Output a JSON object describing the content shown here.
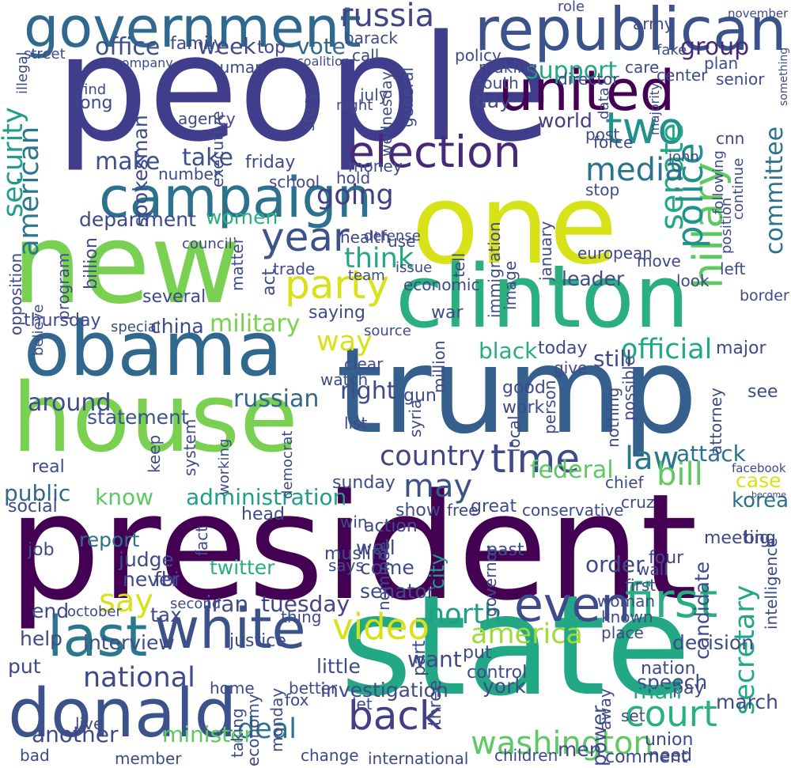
{
  "words": [
    {
      "text": "people",
      "color": "#3f3d8c"
    },
    {
      "text": "trump",
      "color": "#355f8d"
    },
    {
      "text": "president",
      "color": "#440154"
    },
    {
      "text": "state",
      "color": "#22a884"
    },
    {
      "text": "new",
      "color": "#7ad151"
    },
    {
      "text": "house",
      "color": "#7ad151"
    },
    {
      "text": "one",
      "color": "#d8e219"
    },
    {
      "text": "clinton",
      "color": "#2ab07f"
    },
    {
      "text": "obama",
      "color": "#31688e"
    },
    {
      "text": "republican",
      "color": "#3b528b"
    },
    {
      "text": "government",
      "color": "#31688e"
    },
    {
      "text": "campaign",
      "color": "#2c728e"
    },
    {
      "text": "donald",
      "color": "#3b528b"
    },
    {
      "text": "white",
      "color": "#3b528b"
    },
    {
      "text": "united",
      "color": "#440154"
    },
    {
      "text": "election",
      "color": "#482878"
    },
    {
      "text": "last",
      "color": "#2a788e"
    },
    {
      "text": "party",
      "color": "#d8e219"
    },
    {
      "text": "two",
      "color": "#21918c"
    },
    {
      "text": "hillary",
      "color": "#5ec962"
    },
    {
      "text": "even",
      "color": "#3e4a89"
    },
    {
      "text": "first",
      "color": "#27ad81"
    },
    {
      "text": "year",
      "color": "#3b528b"
    },
    {
      "text": "senate",
      "color": "#22a884"
    },
    {
      "text": "police",
      "color": "#21918c"
    },
    {
      "text": "media",
      "color": "#2c728e"
    },
    {
      "text": "back",
      "color": "#433e85"
    },
    {
      "text": "time",
      "color": "#3e4a89"
    },
    {
      "text": "court",
      "color": "#2ab07f"
    },
    {
      "text": "video",
      "color": "#d8e219"
    },
    {
      "text": "washington",
      "color": "#5ec962"
    },
    {
      "text": "national",
      "color": "#3e4a89"
    },
    {
      "text": "american",
      "color": "#2a788e"
    },
    {
      "text": "security",
      "color": "#1f9e89"
    },
    {
      "text": "russia",
      "color": "#414487"
    },
    {
      "text": "office",
      "color": "#3b528b"
    },
    {
      "text": "going",
      "color": "#433e85"
    },
    {
      "text": "make",
      "color": "#3b528b"
    },
    {
      "text": "take",
      "color": "#3b528b"
    },
    {
      "text": "think",
      "color": "#22a884"
    },
    {
      "text": "support",
      "color": "#22a884"
    },
    {
      "text": "group",
      "color": "#482878"
    },
    {
      "text": "week",
      "color": "#3e4a89"
    },
    {
      "text": "vote",
      "color": "#31688e"
    },
    {
      "text": "top",
      "color": "#3e4a89"
    },
    {
      "text": "country",
      "color": "#414487"
    },
    {
      "text": "law",
      "color": "#2a788e"
    },
    {
      "text": "bill",
      "color": "#5ec962"
    },
    {
      "text": "may",
      "color": "#3b528b"
    },
    {
      "text": "america",
      "color": "#a0da39"
    },
    {
      "text": "north",
      "color": "#1f9e89"
    },
    {
      "text": "administration",
      "color": "#1f9e89"
    },
    {
      "text": "department",
      "color": "#3e4a89"
    },
    {
      "text": "say",
      "color": "#d8e219"
    },
    {
      "text": "way",
      "color": "#d8e219"
    },
    {
      "text": "military",
      "color": "#7ad151"
    },
    {
      "text": "federal",
      "color": "#5ec962"
    },
    {
      "text": "committee",
      "color": "#2c728e"
    },
    {
      "text": "official",
      "color": "#22a884"
    },
    {
      "text": "world",
      "color": "#433e85"
    },
    {
      "text": "know",
      "color": "#5ec962"
    },
    {
      "text": "right",
      "color": "#3e4a89"
    },
    {
      "text": "deal",
      "color": "#2c728e"
    },
    {
      "text": "secretary",
      "color": "#22a884"
    },
    {
      "text": "tuesday",
      "color": "#414487"
    },
    {
      "text": "russian",
      "color": "#31688e"
    },
    {
      "text": "interview",
      "color": "#3e4a89"
    },
    {
      "text": "statement",
      "color": "#3b528b"
    },
    {
      "text": "around",
      "color": "#3e4a89"
    },
    {
      "text": "women",
      "color": "#2ab07f"
    },
    {
      "text": "public",
      "color": "#31688e"
    },
    {
      "text": "minister",
      "color": "#5ec962"
    },
    {
      "text": "another",
      "color": "#3e4a89"
    },
    {
      "text": "want",
      "color": "#3e4a89"
    },
    {
      "text": "investigation",
      "color": "#3e4a89"
    },
    {
      "text": "senator",
      "color": "#3e4a89"
    },
    {
      "text": "iran",
      "color": "#3e4a89"
    },
    {
      "text": "tax",
      "color": "#3e4a89"
    },
    {
      "text": "fbi",
      "color": "#414487"
    },
    {
      "text": "judge",
      "color": "#3e4a89"
    },
    {
      "text": "never",
      "color": "#3e4a89"
    },
    {
      "text": "report",
      "color": "#2c728e"
    },
    {
      "text": "twitter",
      "color": "#27ad81"
    },
    {
      "text": "china",
      "color": "#3e4a89"
    },
    {
      "text": "leader",
      "color": "#3e4a89"
    },
    {
      "text": "black",
      "color": "#27ad81"
    },
    {
      "text": "still",
      "color": "#3e4a89"
    },
    {
      "text": "case",
      "color": "#d8e219"
    },
    {
      "text": "attack",
      "color": "#2c728e"
    },
    {
      "text": "korea",
      "color": "#2c728e"
    },
    {
      "text": "order",
      "color": "#3e4a89"
    },
    {
      "text": "candidate",
      "color": "#3e4a89"
    },
    {
      "text": "city",
      "color": "#1f9e89"
    },
    {
      "text": "well",
      "color": "#3e4a89"
    },
    {
      "text": "come",
      "color": "#3e4a89"
    },
    {
      "text": "speech",
      "color": "#3e4a89"
    },
    {
      "text": "march",
      "color": "#3e4a89"
    },
    {
      "text": "pay",
      "color": "#3e4a89"
    },
    {
      "text": "nation",
      "color": "#3e4a89"
    },
    {
      "text": "man",
      "color": "#22a884"
    },
    {
      "text": "decision",
      "color": "#3e4a89"
    },
    {
      "text": "men",
      "color": "#3e4a89"
    },
    {
      "text": "york",
      "color": "#3e4a89"
    },
    {
      "text": "control",
      "color": "#3e4a89"
    },
    {
      "text": "need",
      "color": "#3e4a89"
    },
    {
      "text": "union",
      "color": "#3e4a89"
    },
    {
      "text": "comment",
      "color": "#3e4a89"
    },
    {
      "text": "power",
      "color": "#3e4a89"
    },
    {
      "text": "put",
      "color": "#3e4a89"
    },
    {
      "text": "end",
      "color": "#3e4a89"
    },
    {
      "text": "help",
      "color": "#3e4a89"
    },
    {
      "text": "little",
      "color": "#3e4a89"
    },
    {
      "text": "justice",
      "color": "#3e4a89"
    },
    {
      "text": "sunday",
      "color": "#3e4a89"
    },
    {
      "text": "real",
      "color": "#3e4a89"
    },
    {
      "text": "saying",
      "color": "#3e4a89"
    },
    {
      "text": "war",
      "color": "#3e4a89"
    },
    {
      "text": "thursday",
      "color": "#3e4a89"
    },
    {
      "text": "friday",
      "color": "#3e4a89"
    },
    {
      "text": "day",
      "color": "#3e4a89"
    },
    {
      "text": "family",
      "color": "#3e4a89"
    },
    {
      "text": "agency",
      "color": "#3e4a89"
    },
    {
      "text": "school",
      "color": "#3e4a89"
    },
    {
      "text": "policy",
      "color": "#3e4a89"
    },
    {
      "text": "making",
      "color": "#3e4a89"
    },
    {
      "text": "south",
      "color": "#3e4a89"
    },
    {
      "text": "director",
      "color": "#3e4a89"
    },
    {
      "text": "plan",
      "color": "#3e4a89"
    },
    {
      "text": "senior",
      "color": "#3e4a89"
    },
    {
      "text": "post",
      "color": "#3e4a89"
    },
    {
      "text": "stop",
      "color": "#3e4a89"
    },
    {
      "text": "move",
      "color": "#3e4a89"
    },
    {
      "text": "look",
      "color": "#3e4a89"
    },
    {
      "text": "left",
      "color": "#3e4a89"
    },
    {
      "text": "border",
      "color": "#3e4a89"
    },
    {
      "text": "european",
      "color": "#3e4a89"
    },
    {
      "text": "major",
      "color": "#3e4a89"
    },
    {
      "text": "gun",
      "color": "#3e4a89"
    },
    {
      "text": "good",
      "color": "#3e4a89"
    },
    {
      "text": "work",
      "color": "#3e4a89"
    },
    {
      "text": "see",
      "color": "#3e4a89"
    },
    {
      "text": "chief",
      "color": "#3e4a89"
    },
    {
      "text": "meeting",
      "color": "#3e4a89"
    },
    {
      "text": "four",
      "color": "#3e4a89"
    },
    {
      "text": "wall",
      "color": "#3e4a89"
    },
    {
      "text": "big",
      "color": "#3e4a89"
    },
    {
      "text": "put",
      "color": "#3e4a89"
    },
    {
      "text": "become",
      "color": "#3e4a89"
    },
    {
      "text": "show",
      "color": "#3e4a89"
    },
    {
      "text": "great",
      "color": "#3e4a89"
    },
    {
      "text": "action",
      "color": "#3e4a89"
    },
    {
      "text": "head",
      "color": "#3e4a89"
    },
    {
      "text": "social",
      "color": "#3e4a89"
    },
    {
      "text": "job",
      "color": "#3e4a89"
    },
    {
      "text": "past",
      "color": "#3e4a89"
    },
    {
      "text": "today",
      "color": "#3e4a89"
    },
    {
      "text": "known",
      "color": "#3e4a89"
    },
    {
      "text": "woman",
      "color": "#3e4a89"
    },
    {
      "text": "place",
      "color": "#3e4a89"
    },
    {
      "text": "first",
      "color": "#3e4a89"
    },
    {
      "text": "three",
      "color": "#3e4a89"
    },
    {
      "text": "part",
      "color": "#3e4a89"
    },
    {
      "text": "let",
      "color": "#3e4a89"
    },
    {
      "text": "better",
      "color": "#3e4a89"
    },
    {
      "text": "fox",
      "color": "#3e4a89"
    },
    {
      "text": "home",
      "color": "#3e4a89"
    },
    {
      "text": "live",
      "color": "#3e4a89"
    },
    {
      "text": "bad",
      "color": "#3e4a89"
    },
    {
      "text": "member",
      "color": "#3e4a89"
    },
    {
      "text": "children",
      "color": "#3e4a89"
    },
    {
      "text": "international",
      "color": "#3e4a89"
    },
    {
      "text": "change",
      "color": "#3e4a89"
    },
    {
      "text": "set",
      "color": "#3e4a89"
    },
    {
      "text": "away",
      "color": "#3e4a89"
    },
    {
      "text": "taking",
      "color": "#3e4a89"
    },
    {
      "text": "economy",
      "color": "#3e4a89"
    },
    {
      "text": "monday",
      "color": "#3e4a89"
    },
    {
      "text": "thing",
      "color": "#3e4a89"
    },
    {
      "text": "second",
      "color": "#3e4a89"
    },
    {
      "text": "october",
      "color": "#3e4a89"
    },
    {
      "text": "says",
      "color": "#3e4a89"
    },
    {
      "text": "list",
      "color": "#3e4a89"
    },
    {
      "text": "source",
      "color": "#3e4a89"
    },
    {
      "text": "issue",
      "color": "#3e4a89"
    },
    {
      "text": "trade",
      "color": "#3e4a89"
    },
    {
      "text": "health",
      "color": "#3e4a89"
    },
    {
      "text": "use",
      "color": "#3e4a89"
    },
    {
      "text": "defense",
      "color": "#3e4a89"
    },
    {
      "text": "money",
      "color": "#3e4a89"
    },
    {
      "text": "hold",
      "color": "#3e4a89"
    },
    {
      "text": "number",
      "color": "#3e4a89"
    },
    {
      "text": "executive",
      "color": "#3e4a89"
    },
    {
      "text": "human",
      "color": "#3e4a89"
    },
    {
      "text": "story",
      "color": "#3e4a89"
    },
    {
      "text": "general",
      "color": "#3e4a89"
    },
    {
      "text": "wednesday",
      "color": "#3e4a89"
    },
    {
      "text": "july",
      "color": "#3e4a89"
    },
    {
      "text": "night",
      "color": "#3e4a89"
    },
    {
      "text": "call",
      "color": "#3e4a89"
    },
    {
      "text": "barack",
      "color": "#3e4a89"
    },
    {
      "text": "long",
      "color": "#3e4a89"
    },
    {
      "text": "find",
      "color": "#3e4a89"
    },
    {
      "text": "spokesman",
      "color": "#3e4a89"
    },
    {
      "text": "street",
      "color": "#3e4a89"
    },
    {
      "text": "illegal",
      "color": "#3e4a89"
    },
    {
      "text": "coalition",
      "color": "#3e4a89"
    },
    {
      "text": "company",
      "color": "#3e4a89"
    },
    {
      "text": "fake",
      "color": "#3e4a89"
    },
    {
      "text": "care",
      "color": "#3e4a89"
    },
    {
      "text": "center",
      "color": "#3e4a89"
    },
    {
      "text": "army",
      "color": "#3e4a89"
    },
    {
      "text": "november",
      "color": "#3e4a89"
    },
    {
      "text": "something",
      "color": "#3e4a89"
    },
    {
      "text": "majority",
      "color": "#3e4a89"
    },
    {
      "text": "data",
      "color": "#3e4a89"
    },
    {
      "text": "role",
      "color": "#3e4a89"
    },
    {
      "text": "cnn",
      "color": "#3e4a89"
    },
    {
      "text": "john",
      "color": "#3e4a89"
    },
    {
      "text": "force",
      "color": "#3e4a89"
    },
    {
      "text": "following",
      "color": "#3e4a89"
    },
    {
      "text": "continue",
      "color": "#3e4a89"
    },
    {
      "text": "position",
      "color": "#3e4a89"
    },
    {
      "text": "january",
      "color": "#3e4a89"
    },
    {
      "text": "immigration",
      "color": "#3e4a89"
    },
    {
      "text": "tell",
      "color": "#3e4a89"
    },
    {
      "text": "team",
      "color": "#3e4a89"
    },
    {
      "text": "economic",
      "color": "#3e4a89"
    },
    {
      "text": "image",
      "color": "#3e4a89"
    },
    {
      "text": "several",
      "color": "#3e4a89"
    },
    {
      "text": "council",
      "color": "#3e4a89"
    },
    {
      "text": "billion",
      "color": "#3e4a89"
    },
    {
      "text": "program",
      "color": "#3e4a89"
    },
    {
      "text": "opposition",
      "color": "#3e4a89"
    },
    {
      "text": "believe",
      "color": "#3e4a89"
    },
    {
      "text": "matter",
      "color": "#3e4a89"
    },
    {
      "text": "act",
      "color": "#3e4a89"
    },
    {
      "text": "special",
      "color": "#3e4a89"
    },
    {
      "text": "clear",
      "color": "#3e4a89"
    },
    {
      "text": "watch",
      "color": "#3e4a89"
    },
    {
      "text": "million",
      "color": "#3e4a89"
    },
    {
      "text": "syria",
      "color": "#3e4a89"
    },
    {
      "text": "democrat",
      "color": "#3e4a89"
    },
    {
      "text": "working",
      "color": "#3e4a89"
    },
    {
      "text": "keep",
      "color": "#3e4a89"
    },
    {
      "text": "system",
      "color": "#3e4a89"
    },
    {
      "text": "fact",
      "color": "#3e4a89"
    },
    {
      "text": "nothing",
      "color": "#3e4a89"
    },
    {
      "text": "possible",
      "color": "#3e4a89"
    },
    {
      "text": "attorney",
      "color": "#3e4a89"
    },
    {
      "text": "intelligence",
      "color": "#3e4a89"
    },
    {
      "text": "facebook",
      "color": "#3e4a89"
    },
    {
      "text": "cruz",
      "color": "#3e4a89"
    },
    {
      "text": "conservative",
      "color": "#3e4a89"
    },
    {
      "text": "free",
      "color": "#3e4a89"
    },
    {
      "text": "muslim",
      "color": "#3e4a89"
    },
    {
      "text": "nominee",
      "color": "#3e4a89"
    },
    {
      "text": "governor",
      "color": "#3e4a89"
    },
    {
      "text": "win",
      "color": "#3e4a89"
    },
    {
      "text": "local",
      "color": "#3e4a89"
    },
    {
      "text": "give",
      "color": "#3e4a89"
    },
    {
      "text": "person",
      "color": "#3e4a89"
    }
  ]
}
